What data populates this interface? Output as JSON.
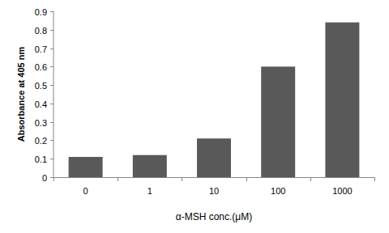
{
  "chart_data": {
    "type": "bar",
    "x_label": "α-MSH conc.(μM)",
    "y_label": "Absorbance at 405 nm",
    "categories": [
      "0",
      "1",
      "10",
      "100",
      "1000"
    ],
    "values": [
      0.11,
      0.12,
      0.21,
      0.6,
      0.84
    ],
    "color": "#595959",
    "ylim": [
      0,
      0.9
    ],
    "yticks": [
      0,
      0.1,
      0.2,
      0.3,
      0.4,
      0.5,
      0.6,
      0.7,
      0.8,
      0.9
    ],
    "grid": false
  }
}
